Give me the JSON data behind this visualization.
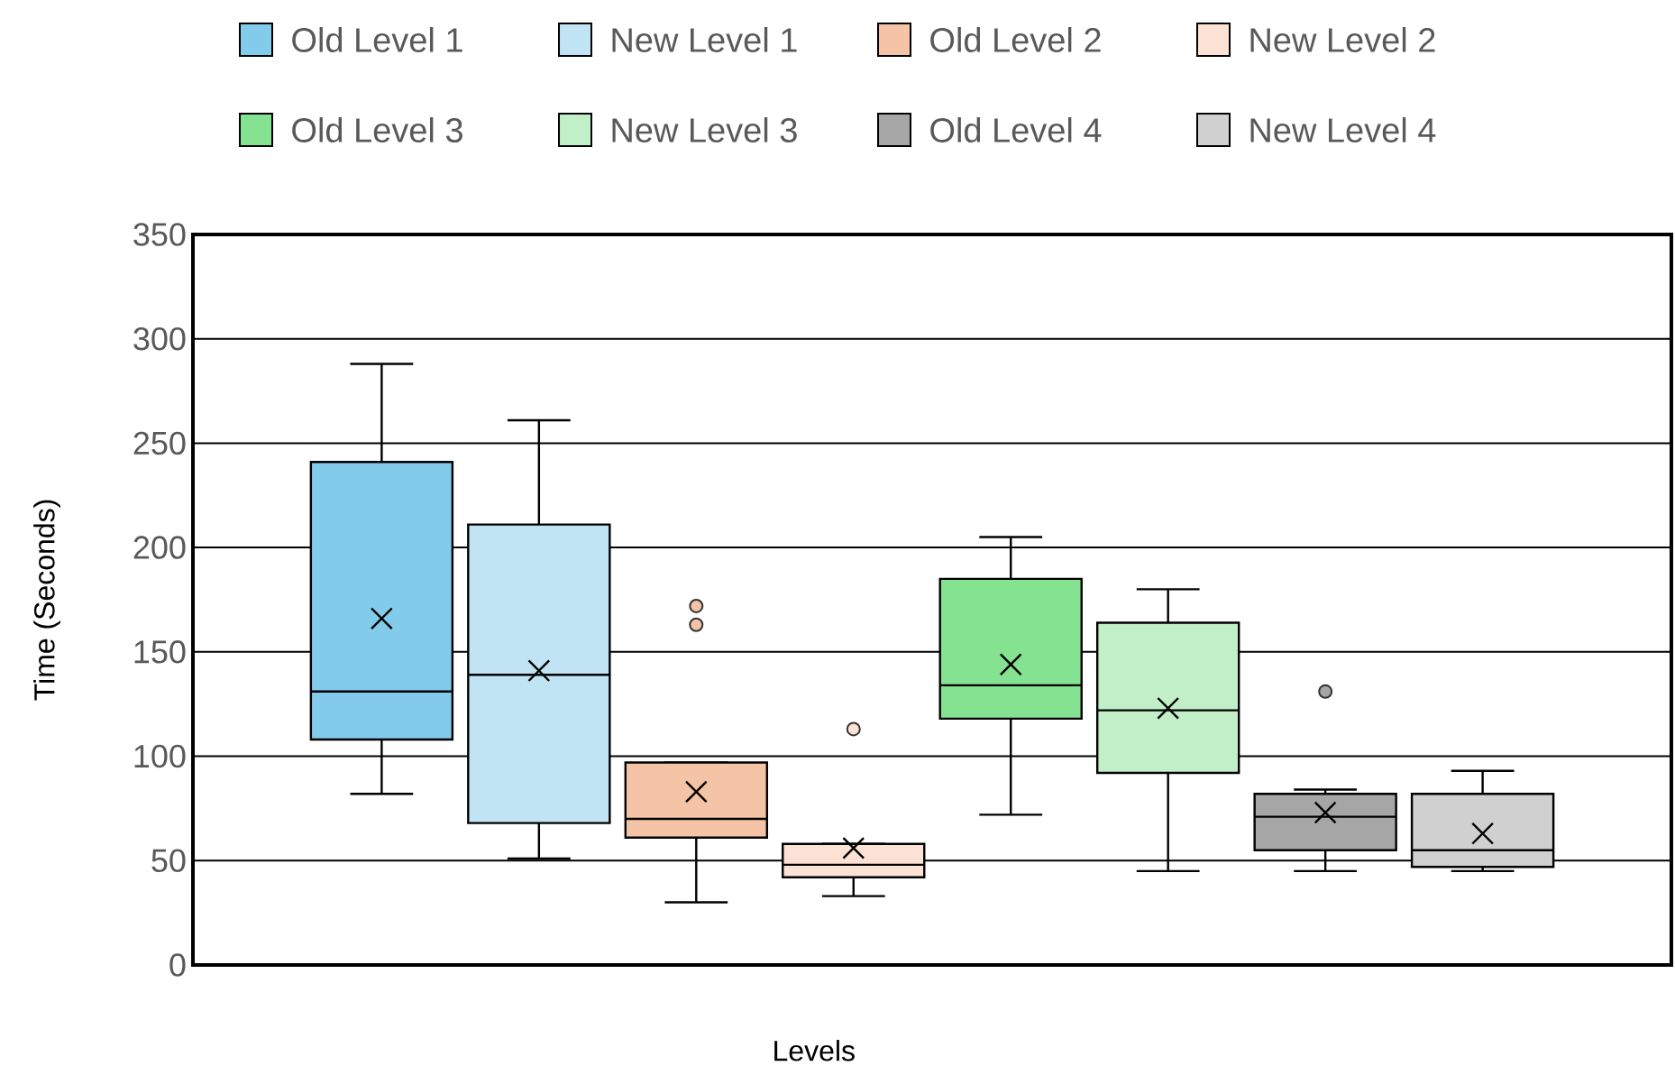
{
  "chart_data": {
    "type": "box",
    "xlabel": "Levels",
    "ylabel": "Time (Seconds)",
    "categories": [
      null
    ],
    "ylim": [
      0,
      350
    ],
    "yticks": [
      0,
      50,
      100,
      150,
      200,
      250,
      300,
      350
    ],
    "grid": "y",
    "legend": "top",
    "series": [
      {
        "name": "Old Level 1",
        "color": "#83cbeb",
        "boxes": [
          {
            "low": 82,
            "q1": 108,
            "median": 131,
            "q3": 241,
            "high": 288,
            "mean": 166
          }
        ]
      },
      {
        "name": "New Level 1",
        "color": "#c1e4f5",
        "boxes": [
          {
            "low": 51,
            "q1": 68,
            "median": 139,
            "q3": 211,
            "high": 261,
            "mean": 141
          }
        ]
      },
      {
        "name": "Old Level 2",
        "color": "#f5c4a7",
        "boxes": [
          {
            "low": 30,
            "q1": 61,
            "median": 70,
            "q3": 97,
            "high": 97,
            "mean": 83,
            "outliers": [
              163,
              172
            ]
          }
        ]
      },
      {
        "name": "New Level 2",
        "color": "#fbe2d5",
        "boxes": [
          {
            "low": 33,
            "q1": 42,
            "median": 48,
            "q3": 58,
            "high": 58,
            "mean": 56,
            "outliers": [
              113
            ]
          }
        ]
      },
      {
        "name": "Old Level 3",
        "color": "#84e291",
        "boxes": [
          {
            "low": 72,
            "q1": 118,
            "median": 134,
            "q3": 185,
            "high": 205,
            "mean": 144
          }
        ]
      },
      {
        "name": "New Level 3",
        "color": "#c1f0c8",
        "boxes": [
          {
            "low": 45,
            "q1": 92,
            "median": 122,
            "q3": 164,
            "high": 180,
            "mean": 123
          }
        ]
      },
      {
        "name": "Old Level 4",
        "color": "#a6a6a6",
        "boxes": [
          {
            "low": 45,
            "q1": 55,
            "median": 71,
            "q3": 82,
            "high": 84,
            "mean": 73,
            "outliers": [
              131
            ]
          }
        ]
      },
      {
        "name": "New Level 4",
        "color": "#d0d0d0",
        "boxes": [
          {
            "low": 45,
            "q1": 47,
            "median": 55,
            "q3": 82,
            "high": 93,
            "mean": 63
          }
        ]
      }
    ]
  }
}
